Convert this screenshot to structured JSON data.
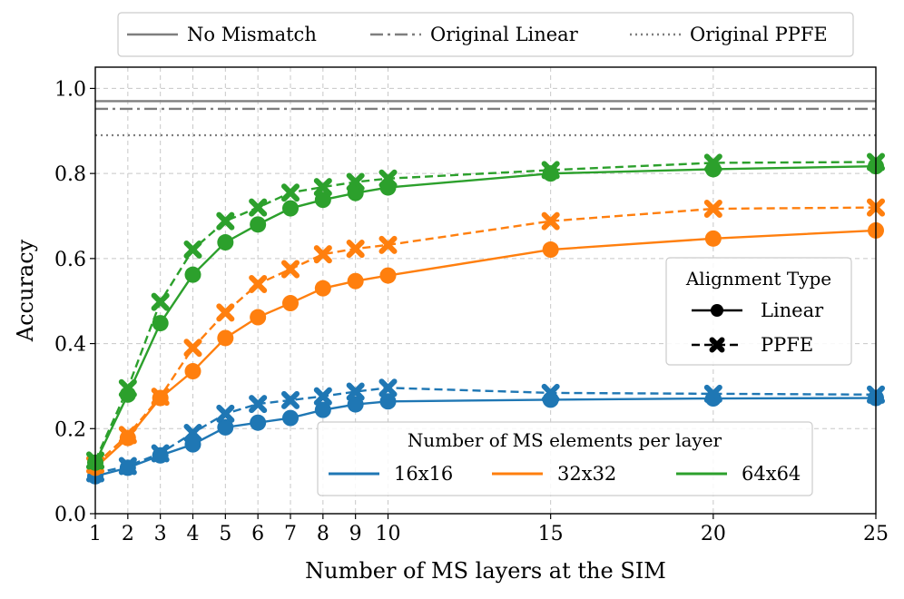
{
  "chart_data": {
    "type": "line",
    "xlabel": "Number of MS layers at the SIM",
    "ylabel": "Accuracy",
    "xlim": [
      1,
      25
    ],
    "ylim": [
      0.0,
      1.05
    ],
    "x_ticks": [
      1,
      2,
      3,
      4,
      5,
      6,
      7,
      8,
      9,
      10,
      15,
      20,
      25
    ],
    "y_ticks": [
      0.0,
      0.2,
      0.4,
      0.6,
      0.8,
      1.0
    ],
    "x_tick_labels": [
      "1",
      "2",
      "3",
      "4",
      "5",
      "6",
      "7",
      "8",
      "9",
      "10",
      "15",
      "20",
      "25"
    ],
    "y_tick_labels": [
      "0.0",
      "0.2",
      "0.4",
      "0.6",
      "0.8",
      "1.0"
    ],
    "grid": true,
    "x": [
      1,
      2,
      3,
      4,
      5,
      6,
      7,
      8,
      9,
      10,
      15,
      20,
      25
    ],
    "reference_lines": [
      {
        "name": "No Mismatch",
        "value": 0.97,
        "style": "solid",
        "color": "#7f7f7f"
      },
      {
        "name": "Original Linear",
        "value": 0.952,
        "style": "dashdot",
        "color": "#7f7f7f"
      },
      {
        "name": "Original PPFE",
        "value": 0.89,
        "style": "dotted",
        "color": "#7f7f7f"
      }
    ],
    "series": [
      {
        "name": "16x16 Linear",
        "elements": "16x16",
        "alignment": "Linear",
        "color": "#1f77b4",
        "style": "solid",
        "marker": "circle",
        "values": [
          0.088,
          0.108,
          0.137,
          0.163,
          0.203,
          0.214,
          0.225,
          0.244,
          0.257,
          0.264,
          0.268,
          0.271,
          0.272
        ]
      },
      {
        "name": "16x16 PPFE",
        "elements": "16x16",
        "alignment": "PPFE",
        "color": "#1f77b4",
        "style": "dashed",
        "marker": "x",
        "values": [
          0.095,
          0.112,
          0.142,
          0.19,
          0.235,
          0.258,
          0.267,
          0.276,
          0.287,
          0.296,
          0.284,
          0.282,
          0.28
        ]
      },
      {
        "name": "32x32 Linear",
        "elements": "32x32",
        "alignment": "Linear",
        "color": "#ff7f0e",
        "style": "solid",
        "marker": "circle",
        "values": [
          0.108,
          0.178,
          0.272,
          0.335,
          0.413,
          0.462,
          0.495,
          0.53,
          0.547,
          0.56,
          0.621,
          0.647,
          0.666
        ]
      },
      {
        "name": "32x32 PPFE",
        "elements": "32x32",
        "alignment": "PPFE",
        "color": "#ff7f0e",
        "style": "dashed",
        "marker": "x",
        "values": [
          0.115,
          0.185,
          0.275,
          0.39,
          0.473,
          0.54,
          0.575,
          0.61,
          0.623,
          0.632,
          0.688,
          0.717,
          0.72
        ]
      },
      {
        "name": "64x64 Linear",
        "elements": "64x64",
        "alignment": "Linear",
        "color": "#2ca02c",
        "style": "solid",
        "marker": "circle",
        "values": [
          0.12,
          0.28,
          0.448,
          0.562,
          0.638,
          0.68,
          0.718,
          0.738,
          0.754,
          0.767,
          0.8,
          0.81,
          0.817
        ]
      },
      {
        "name": "64x64 PPFE",
        "elements": "64x64",
        "alignment": "PPFE",
        "color": "#2ca02c",
        "style": "dashed",
        "marker": "x",
        "values": [
          0.125,
          0.295,
          0.498,
          0.621,
          0.688,
          0.72,
          0.755,
          0.768,
          0.78,
          0.788,
          0.808,
          0.825,
          0.827
        ]
      }
    ],
    "legends": {
      "top": {
        "placement": "top-center",
        "entries": [
          "No Mismatch",
          "Original Linear",
          "Original PPFE"
        ]
      },
      "alignment": {
        "placement": "center-right",
        "title": "Alignment Type",
        "entries": [
          "Linear",
          "PPFE"
        ]
      },
      "elements": {
        "placement": "lower-center",
        "title": "Number of MS elements per layer",
        "entries": [
          "16x16",
          "32x32",
          "64x64"
        ]
      }
    }
  }
}
